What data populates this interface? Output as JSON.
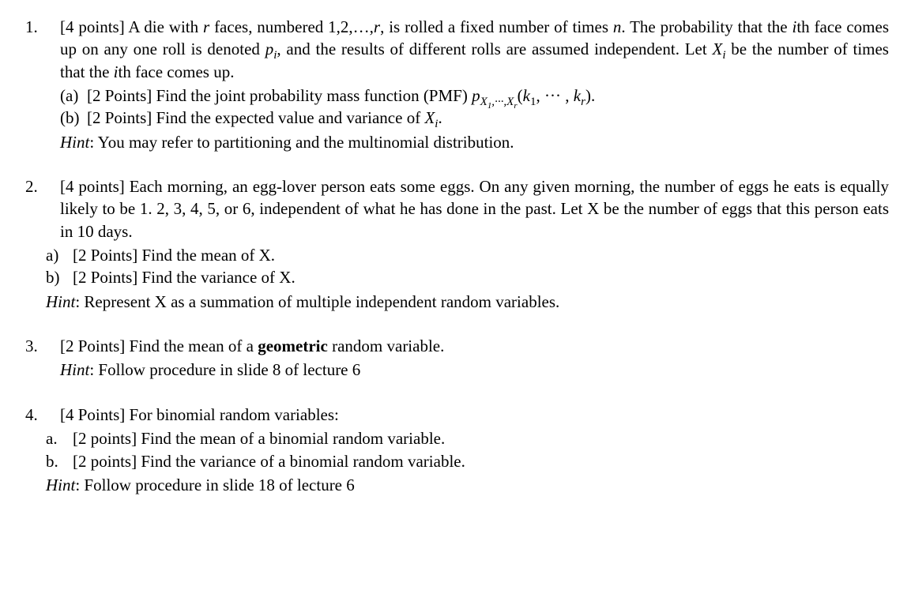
{
  "problems": [
    {
      "number": "1.",
      "points": "[4 points]",
      "stem_html": "A die with <span class=\"mi\">r</span> faces, numbered 1,2,…,<span class=\"mi\">r</span>, is rolled a fixed number of times <span class=\"mi\">n</span>. The probability that the <span class=\"mi\">i</span>th face comes up on any one roll is denoted <span class=\"mi\">p<sub>i</sub></span>, and the results of different rolls are assumed independent. Let <span class=\"mi\">X<sub>i</sub></span> be the number of times that the <span class=\"mi\">i</span>th face comes up.",
      "subs_indented": false,
      "subs": [
        {
          "label": "(a)",
          "text_html": "[2 Points] Find the joint probability mass function (PMF) <span class=\"mi\">p<sub>X<sub>1</sub>,···,X<sub>r</sub></sub></span>(<span class=\"mi\">k</span><sub>1</sub>, ··· , <span class=\"mi\">k<sub>r</sub></span>)."
        },
        {
          "label": "(b)",
          "text_html": "[2 Points] Find the expected value and variance of <span class=\"mi\">X<sub>i</sub></span>."
        }
      ],
      "hint_indented": false,
      "hint_html": "<em class=\"hintword\">Hint</em>: You may refer to partitioning and the multinomial distribution."
    },
    {
      "number": "2.",
      "points": "[4 points]",
      "stem_html": "Each morning, an egg-lover person eats some eggs. On any given morning, the number of eggs he eats is equally likely to be 1. 2, 3, 4, 5, or 6, independent of what he has done in the past. Let X be the number of eggs that this person eats in 10 days.",
      "subs_indented": true,
      "subs": [
        {
          "label": "a)",
          "text_html": "[2 Points] Find the mean of X."
        },
        {
          "label": "b)",
          "text_html": "[2 Points] Find the variance of X."
        }
      ],
      "hint_indented": true,
      "hint_html": "<em class=\"hintword\">Hint</em>: Represent X as a summation of multiple independent random variables."
    },
    {
      "number": "3.",
      "points": "[2 Points]",
      "stem_html": "Find the mean of a <strong>geometric</strong> random variable.",
      "subs_indented": false,
      "subs": [],
      "hint_indented": false,
      "hint_html": "<em class=\"hintword\">Hint</em>: Follow procedure in slide 8 of lecture 6"
    },
    {
      "number": "4.",
      "points": "[4 Points]",
      "stem_html": "For binomial random variables:",
      "subs_indented": true,
      "subs": [
        {
          "label": "a.",
          "text_html": "[2 points] Find the mean of a binomial random variable."
        },
        {
          "label": "b.",
          "text_html": "[2 points] Find the variance of a binomial random variable."
        }
      ],
      "hint_indented": true,
      "hint_html": "<em class=\"hintword\">Hint</em>: Follow procedure in slide 18 of lecture 6"
    }
  ]
}
